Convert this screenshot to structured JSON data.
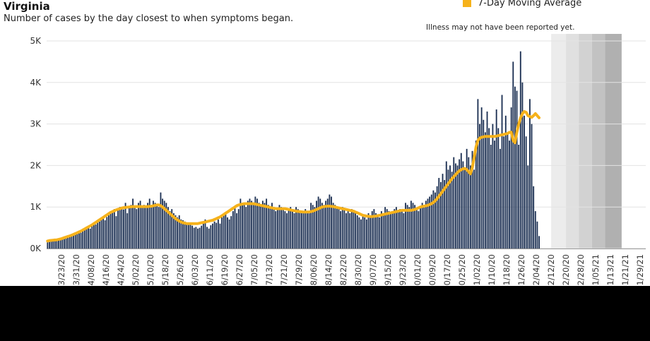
{
  "chart_data": {
    "type": "bar",
    "title": "Virginia",
    "subtitle": "Number of cases by the day closest to when symptoms began.",
    "note": "Illness may not have been reported yet.",
    "legend": {
      "label": "7-Day Moving Average",
      "color": "#f6b21b",
      "position": "top-right"
    },
    "bar_color": "#1b2f52",
    "ylim": [
      0,
      5000
    ],
    "y_ticks": [
      "0K",
      "1K",
      "2K",
      "3K",
      "4K",
      "5K"
    ],
    "x_tick_labels": [
      "03/23/20",
      "03/31/20",
      "04/08/20",
      "04/16/20",
      "04/24/20",
      "05/02/20",
      "05/10/20",
      "05/18/20",
      "05/26/20",
      "06/03/20",
      "06/11/20",
      "06/19/20",
      "06/27/20",
      "07/05/20",
      "07/13/20",
      "07/21/20",
      "07/29/20",
      "08/06/20",
      "08/14/20",
      "08/22/20",
      "08/30/20",
      "09/07/20",
      "09/15/20",
      "09/23/20",
      "10/01/20",
      "10/09/20",
      "10/17/20",
      "10/25/20",
      "11/02/20",
      "11/10/20",
      "11/18/20",
      "11/26/20",
      "12/04/20",
      "12/12/20",
      "12/20/20",
      "12/28/20",
      "01/05/21",
      "01/13/21",
      "01/21/21",
      "01/29/21"
    ],
    "dates": [
      "2020-03-15",
      "2021-01-19"
    ],
    "x_axis": {
      "start": "2020-03-15",
      "end": "2021-02-01"
    },
    "recent_shading": [
      {
        "from": "2020-12-12",
        "to": "2020-12-20",
        "color": "#ececec"
      },
      {
        "from": "2020-12-20",
        "to": "2020-12-27",
        "color": "#e0e0e0"
      },
      {
        "from": "2020-12-27",
        "to": "2021-01-03",
        "color": "#d2d2d2"
      },
      {
        "from": "2021-01-03",
        "to": "2021-01-10",
        "color": "#c2c2c2"
      },
      {
        "from": "2021-01-10",
        "to": "2021-01-19",
        "color": "#b0b0b0"
      }
    ],
    "cases": [
      150,
      160,
      170,
      180,
      200,
      210,
      230,
      240,
      260,
      280,
      300,
      270,
      320,
      350,
      340,
      360,
      400,
      420,
      380,
      450,
      470,
      500,
      520,
      480,
      550,
      600,
      580,
      620,
      650,
      700,
      720,
      680,
      760,
      800,
      850,
      900,
      950,
      780,
      920,
      1000,
      980,
      940,
      1100,
      850,
      1000,
      1050,
      1200,
      1000,
      950,
      1100,
      1150,
      1000,
      1050,
      980,
      1100,
      1200,
      1000,
      1150,
      1100,
      1050,
      1000,
      1350,
      1200,
      1150,
      1100,
      1000,
      900,
      950,
      850,
      800,
      750,
      800,
      700,
      680,
      650,
      600,
      620,
      580,
      550,
      500,
      520,
      480,
      500,
      550,
      600,
      700,
      520,
      480,
      560,
      600,
      650,
      620,
      700,
      600,
      750,
      800,
      850,
      750,
      700,
      780,
      900,
      1000,
      850,
      950,
      1200,
      1100,
      1050,
      1000,
      1150,
      1200,
      1150,
      1100,
      1250,
      1200,
      1100,
      1050,
      1150,
      1100,
      1200,
      1050,
      1000,
      1100,
      1000,
      900,
      950,
      1050,
      1000,
      950,
      900,
      850,
      950,
      1000,
      900,
      850,
      1000,
      950,
      900,
      850,
      850,
      950,
      900,
      850,
      1100,
      1050,
      1000,
      1150,
      1250,
      1200,
      1100,
      1050,
      1150,
      1200,
      1300,
      1250,
      1100,
      1050,
      1000,
      950,
      900,
      1000,
      950,
      850,
      900,
      850,
      950,
      900,
      850,
      800,
      750,
      700,
      800,
      750,
      700,
      850,
      800,
      900,
      950,
      850,
      800,
      750,
      900,
      850,
      1000,
      950,
      900,
      850,
      900,
      950,
      1000,
      900,
      950,
      900,
      850,
      1100,
      1050,
      1000,
      1150,
      1100,
      1050,
      950,
      900,
      1000,
      1100,
      1050,
      1150,
      1200,
      1250,
      1300,
      1400,
      1350,
      1500,
      1700,
      1600,
      1800,
      1650,
      2100,
      1900,
      2000,
      1850,
      2200,
      2050,
      2000,
      2150,
      2300,
      2100,
      1900,
      2400,
      2200,
      2000,
      2350,
      1900,
      2600,
      3600,
      3000,
      3400,
      3100,
      2800,
      3300,
      2900,
      2500,
      3000,
      2600,
      3350,
      2900,
      2400,
      3700,
      2700,
      3200,
      2800,
      2600,
      3400,
      4500,
      3900,
      3800,
      2500,
      4750,
      4000,
      3200,
      2700,
      2000,
      3600,
      3000,
      1500,
      900,
      650,
      300
    ],
    "moving_average": [
      180,
      190,
      195,
      200,
      205,
      210,
      220,
      230,
      245,
      260,
      275,
      290,
      305,
      320,
      340,
      360,
      380,
      400,
      420,
      445,
      470,
      495,
      520,
      545,
      570,
      600,
      630,
      660,
      690,
      720,
      750,
      780,
      810,
      840,
      870,
      890,
      910,
      930,
      945,
      960,
      975,
      985,
      990,
      995,
      1000,
      1005,
      1010,
      1010,
      1010,
      1010,
      1010,
      1010,
      1010,
      1010,
      1010,
      1015,
      1020,
      1030,
      1040,
      1050,
      1050,
      1030,
      1000,
      960,
      920,
      880,
      840,
      800,
      760,
      720,
      690,
      660,
      640,
      620,
      610,
      600,
      600,
      600,
      600,
      600,
      600,
      600,
      610,
      620,
      630,
      640,
      650,
      660,
      670,
      680,
      700,
      720,
      740,
      760,
      790,
      820,
      850,
      880,
      910,
      940,
      970,
      1000,
      1030,
      1050,
      1060,
      1070,
      1080,
      1080,
      1080,
      1080,
      1080,
      1080,
      1070,
      1060,
      1050,
      1040,
      1030,
      1020,
      1010,
      1000,
      990,
      980,
      970,
      960,
      960,
      960,
      960,
      960,
      960,
      950,
      940,
      930,
      920,
      910,
      900,
      895,
      890,
      885,
      880,
      880,
      880,
      880,
      890,
      900,
      920,
      940,
      960,
      980,
      1000,
      1010,
      1015,
      1020,
      1020,
      1015,
      1010,
      1000,
      990,
      980,
      970,
      960,
      950,
      940,
      930,
      920,
      910,
      900,
      880,
      860,
      840,
      820,
      800,
      790,
      780,
      775,
      770,
      770,
      775,
      780,
      790,
      800,
      810,
      820,
      830,
      840,
      850,
      860,
      870,
      880,
      890,
      900,
      910,
      920,
      920,
      920,
      920,
      920,
      920,
      930,
      940,
      960,
      980,
      1000,
      1010,
      1020,
      1030,
      1040,
      1060,
      1080,
      1110,
      1150,
      1200,
      1260,
      1320,
      1380,
      1440,
      1500,
      1560,
      1620,
      1680,
      1730,
      1780,
      1830,
      1870,
      1900,
      1920,
      1930,
      1900,
      1850,
      1800,
      1950,
      2200,
      2450,
      2600,
      2660,
      2680,
      2690,
      2700,
      2700,
      2700,
      2700,
      2700,
      2700,
      2710,
      2720,
      2730,
      2740,
      2750,
      2760,
      2770,
      2800,
      2800,
      2600,
      2550,
      2800,
      3000,
      3150,
      3250,
      3300,
      3280,
      3200,
      3180,
      3160,
      3200,
      3250,
      3200,
      3150
    ]
  }
}
